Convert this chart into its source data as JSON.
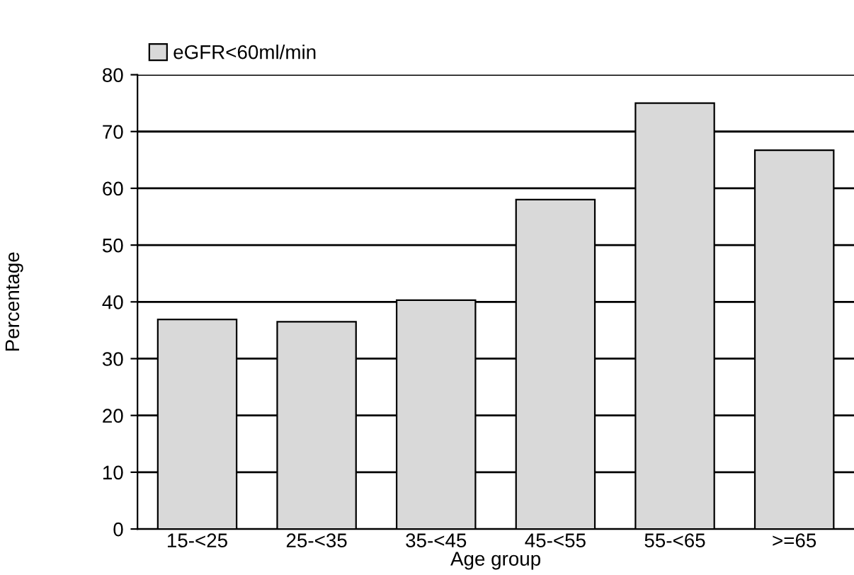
{
  "chart_data": {
    "type": "bar",
    "xlabel": "Age group",
    "ylabel": "Percentage",
    "categories": [
      "15-<25",
      "25-<35",
      "35-<45",
      "45-<55",
      "55-<65",
      ">=65"
    ],
    "series": [
      {
        "name": "eGFR<60ml/min",
        "color": "#d9d9d9",
        "values": [
          36.9,
          36.5,
          40.3,
          58.0,
          75.0,
          66.7
        ]
      }
    ],
    "ylim": [
      0,
      80
    ],
    "yticks": [
      0,
      10,
      20,
      30,
      40,
      50,
      60,
      70,
      80
    ],
    "grid": "y",
    "legend": "top left"
  }
}
